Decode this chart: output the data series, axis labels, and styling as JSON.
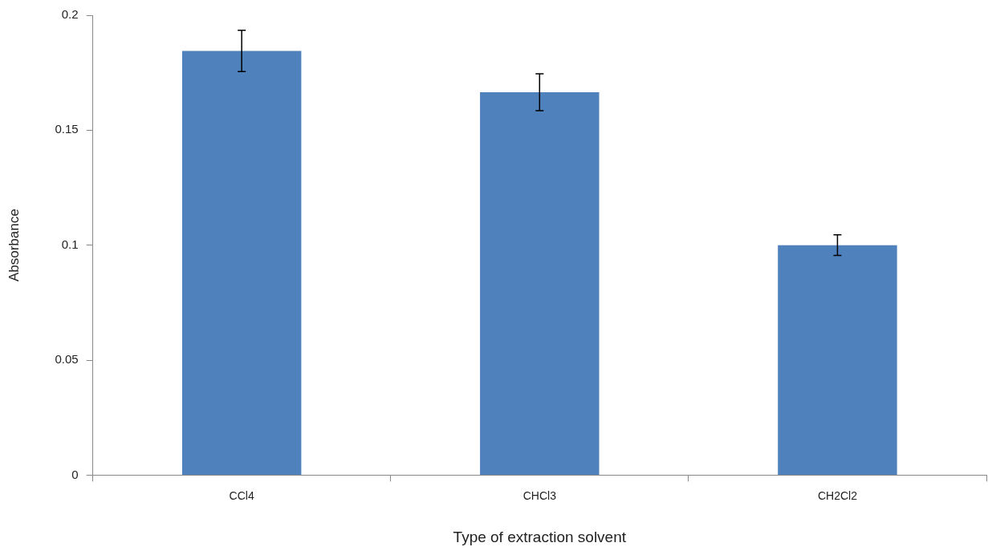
{
  "chart_data": {
    "type": "bar",
    "xlabel": "Type of extraction solvent",
    "ylabel": "Absorbance",
    "categories": [
      "CCl4",
      "CHCl3",
      "CH2Cl2"
    ],
    "values": [
      0.1845,
      0.1665,
      0.1
    ],
    "errors": [
      0.009,
      0.008,
      0.0045
    ],
    "color": "#4f81bd",
    "ylim": [
      0,
      0.2
    ],
    "yticks": [
      0,
      0.05,
      0.1,
      0.15,
      0.2
    ],
    "grid": false,
    "legend": false
  }
}
